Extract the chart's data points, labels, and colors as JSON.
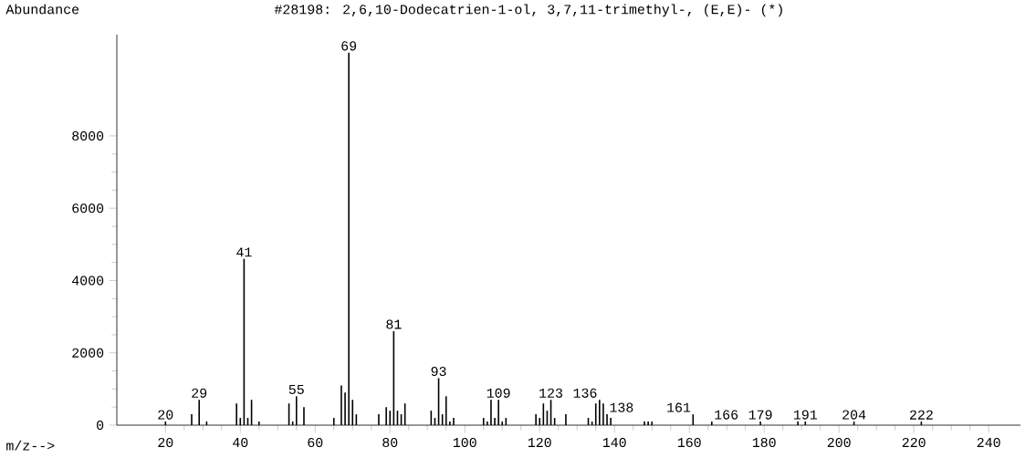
{
  "chart_data": {
    "type": "bar",
    "title": "#28198: 2,6,10-Dodecatrien-1-ol, 3,7,11-trimethyl-, (E,E)- (*)",
    "xlabel": "m/z-->",
    "ylabel": "Abundance",
    "color": "#000000",
    "x": [
      20,
      27,
      29,
      31,
      39,
      40,
      41,
      42,
      43,
      45,
      53,
      54,
      55,
      57,
      65,
      67,
      68,
      69,
      70,
      71,
      77,
      79,
      80,
      81,
      82,
      83,
      84,
      91,
      92,
      93,
      94,
      95,
      96,
      97,
      105,
      106,
      107,
      108,
      109,
      110,
      111,
      119,
      120,
      121,
      122,
      123,
      124,
      127,
      133,
      134,
      135,
      136,
      137,
      138,
      139,
      148,
      149,
      150,
      161,
      166,
      179,
      189,
      191,
      204,
      222
    ],
    "values": [
      100,
      300,
      700,
      100,
      600,
      200,
      4600,
      200,
      700,
      100,
      600,
      100,
      800,
      500,
      200,
      1100,
      900,
      10300,
      700,
      300,
      300,
      500,
      400,
      2600,
      400,
      300,
      600,
      400,
      200,
      1300,
      300,
      800,
      100,
      200,
      200,
      100,
      700,
      200,
      700,
      100,
      200,
      300,
      200,
      600,
      400,
      700,
      200,
      300,
      200,
      100,
      600,
      700,
      600,
      300,
      200,
      100,
      100,
      100,
      300,
      100,
      100,
      100,
      100,
      100,
      100
    ],
    "xlim": [
      7,
      248.5
    ],
    "ylim": [
      0,
      10800
    ],
    "xticks": [
      20,
      40,
      60,
      80,
      100,
      120,
      140,
      160,
      180,
      200,
      220,
      240
    ],
    "yticks": [
      0,
      2000,
      4000,
      6000,
      8000
    ],
    "annotations": [
      {
        "text": "20",
        "x": 20,
        "y": 100
      },
      {
        "text": "29",
        "x": 29,
        "y": 700
      },
      {
        "text": "41",
        "x": 41,
        "y": 4600
      },
      {
        "text": "55",
        "x": 55,
        "y": 800
      },
      {
        "text": "69",
        "x": 69,
        "y": 10300
      },
      {
        "text": "81",
        "x": 81,
        "y": 2600
      },
      {
        "text": "93",
        "x": 93,
        "y": 1300
      },
      {
        "text": "109",
        "x": 109,
        "y": 700
      },
      {
        "text": "123",
        "x": 123,
        "y": 700
      },
      {
        "text": "136",
        "x": 136,
        "y": 700
      },
      {
        "text": "138",
        "x": 138,
        "y": 300
      },
      {
        "text": "161",
        "x": 161,
        "y": 300
      },
      {
        "text": "166",
        "x": 166,
        "y": 100
      },
      {
        "text": "179",
        "x": 179,
        "y": 100
      },
      {
        "text": "191",
        "x": 191,
        "y": 100
      },
      {
        "text": "204",
        "x": 204,
        "y": 100
      },
      {
        "text": "222",
        "x": 222,
        "y": 100
      }
    ]
  }
}
